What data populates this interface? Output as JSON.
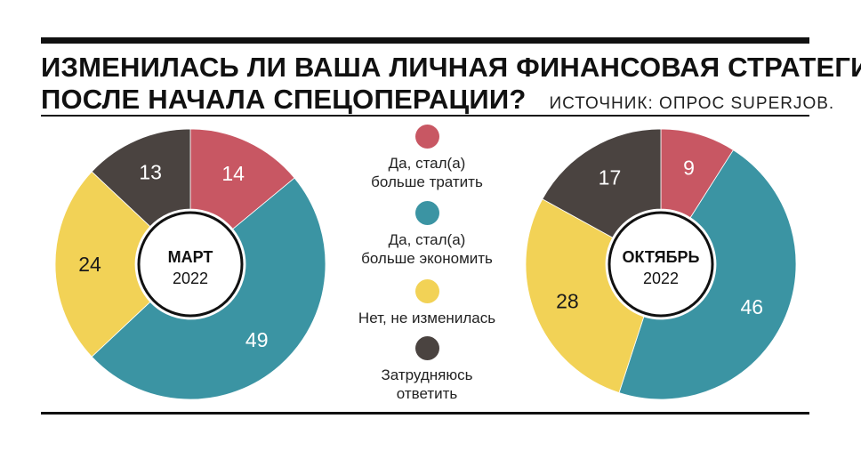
{
  "header": {
    "title_line1": "ИЗМЕНИЛАСЬ ЛИ ВАША ЛИЧНАЯ ФИНАНСОВАЯ СТРАТЕГИЯ",
    "title_line2": "ПОСЛЕ НАЧАЛА СПЕЦОПЕРАЦИИ?",
    "source": "ИСТОЧНИК: ОПРОС SUPERJOB."
  },
  "legend": {
    "items": [
      {
        "label_line1": "Да, стал(а)",
        "label_line2": "больше тратить",
        "color": "#c85763"
      },
      {
        "label_line1": "Да, стал(а)",
        "label_line2": "больше экономить",
        "color": "#3b94a3"
      },
      {
        "label_line1": "Нет, не изменилась",
        "label_line2": "",
        "color": "#f2d256"
      },
      {
        "label_line1": "Затрудняюсь",
        "label_line2": "ответить",
        "color": "#4a4340"
      }
    ]
  },
  "chart_data": [
    {
      "type": "pie",
      "donut": true,
      "center_label": "МАРТ",
      "center_sublabel": "2022",
      "categories": [
        "Да, стал(а) больше тратить",
        "Да, стал(а) больше экономить",
        "Нет, не изменилась",
        "Затрудняюсь ответить"
      ],
      "values": [
        14,
        49,
        24,
        13
      ],
      "colors": [
        "#c85763",
        "#3b94a3",
        "#f2d256",
        "#4a4340"
      ],
      "label_colors": [
        "#ffffff",
        "#ffffff",
        "#1a1a1a",
        "#ffffff"
      ],
      "unit": "%"
    },
    {
      "type": "pie",
      "donut": true,
      "center_label": "ОКТЯБРЬ",
      "center_sublabel": "2022",
      "categories": [
        "Да, стал(а) больше тратить",
        "Да, стал(а) больше экономить",
        "Нет, не изменилась",
        "Затрудняюсь ответить"
      ],
      "values": [
        9,
        46,
        28,
        17
      ],
      "colors": [
        "#c85763",
        "#3b94a3",
        "#f2d256",
        "#4a4340"
      ],
      "label_colors": [
        "#ffffff",
        "#ffffff",
        "#1a1a1a",
        "#ffffff"
      ],
      "unit": "%"
    }
  ]
}
